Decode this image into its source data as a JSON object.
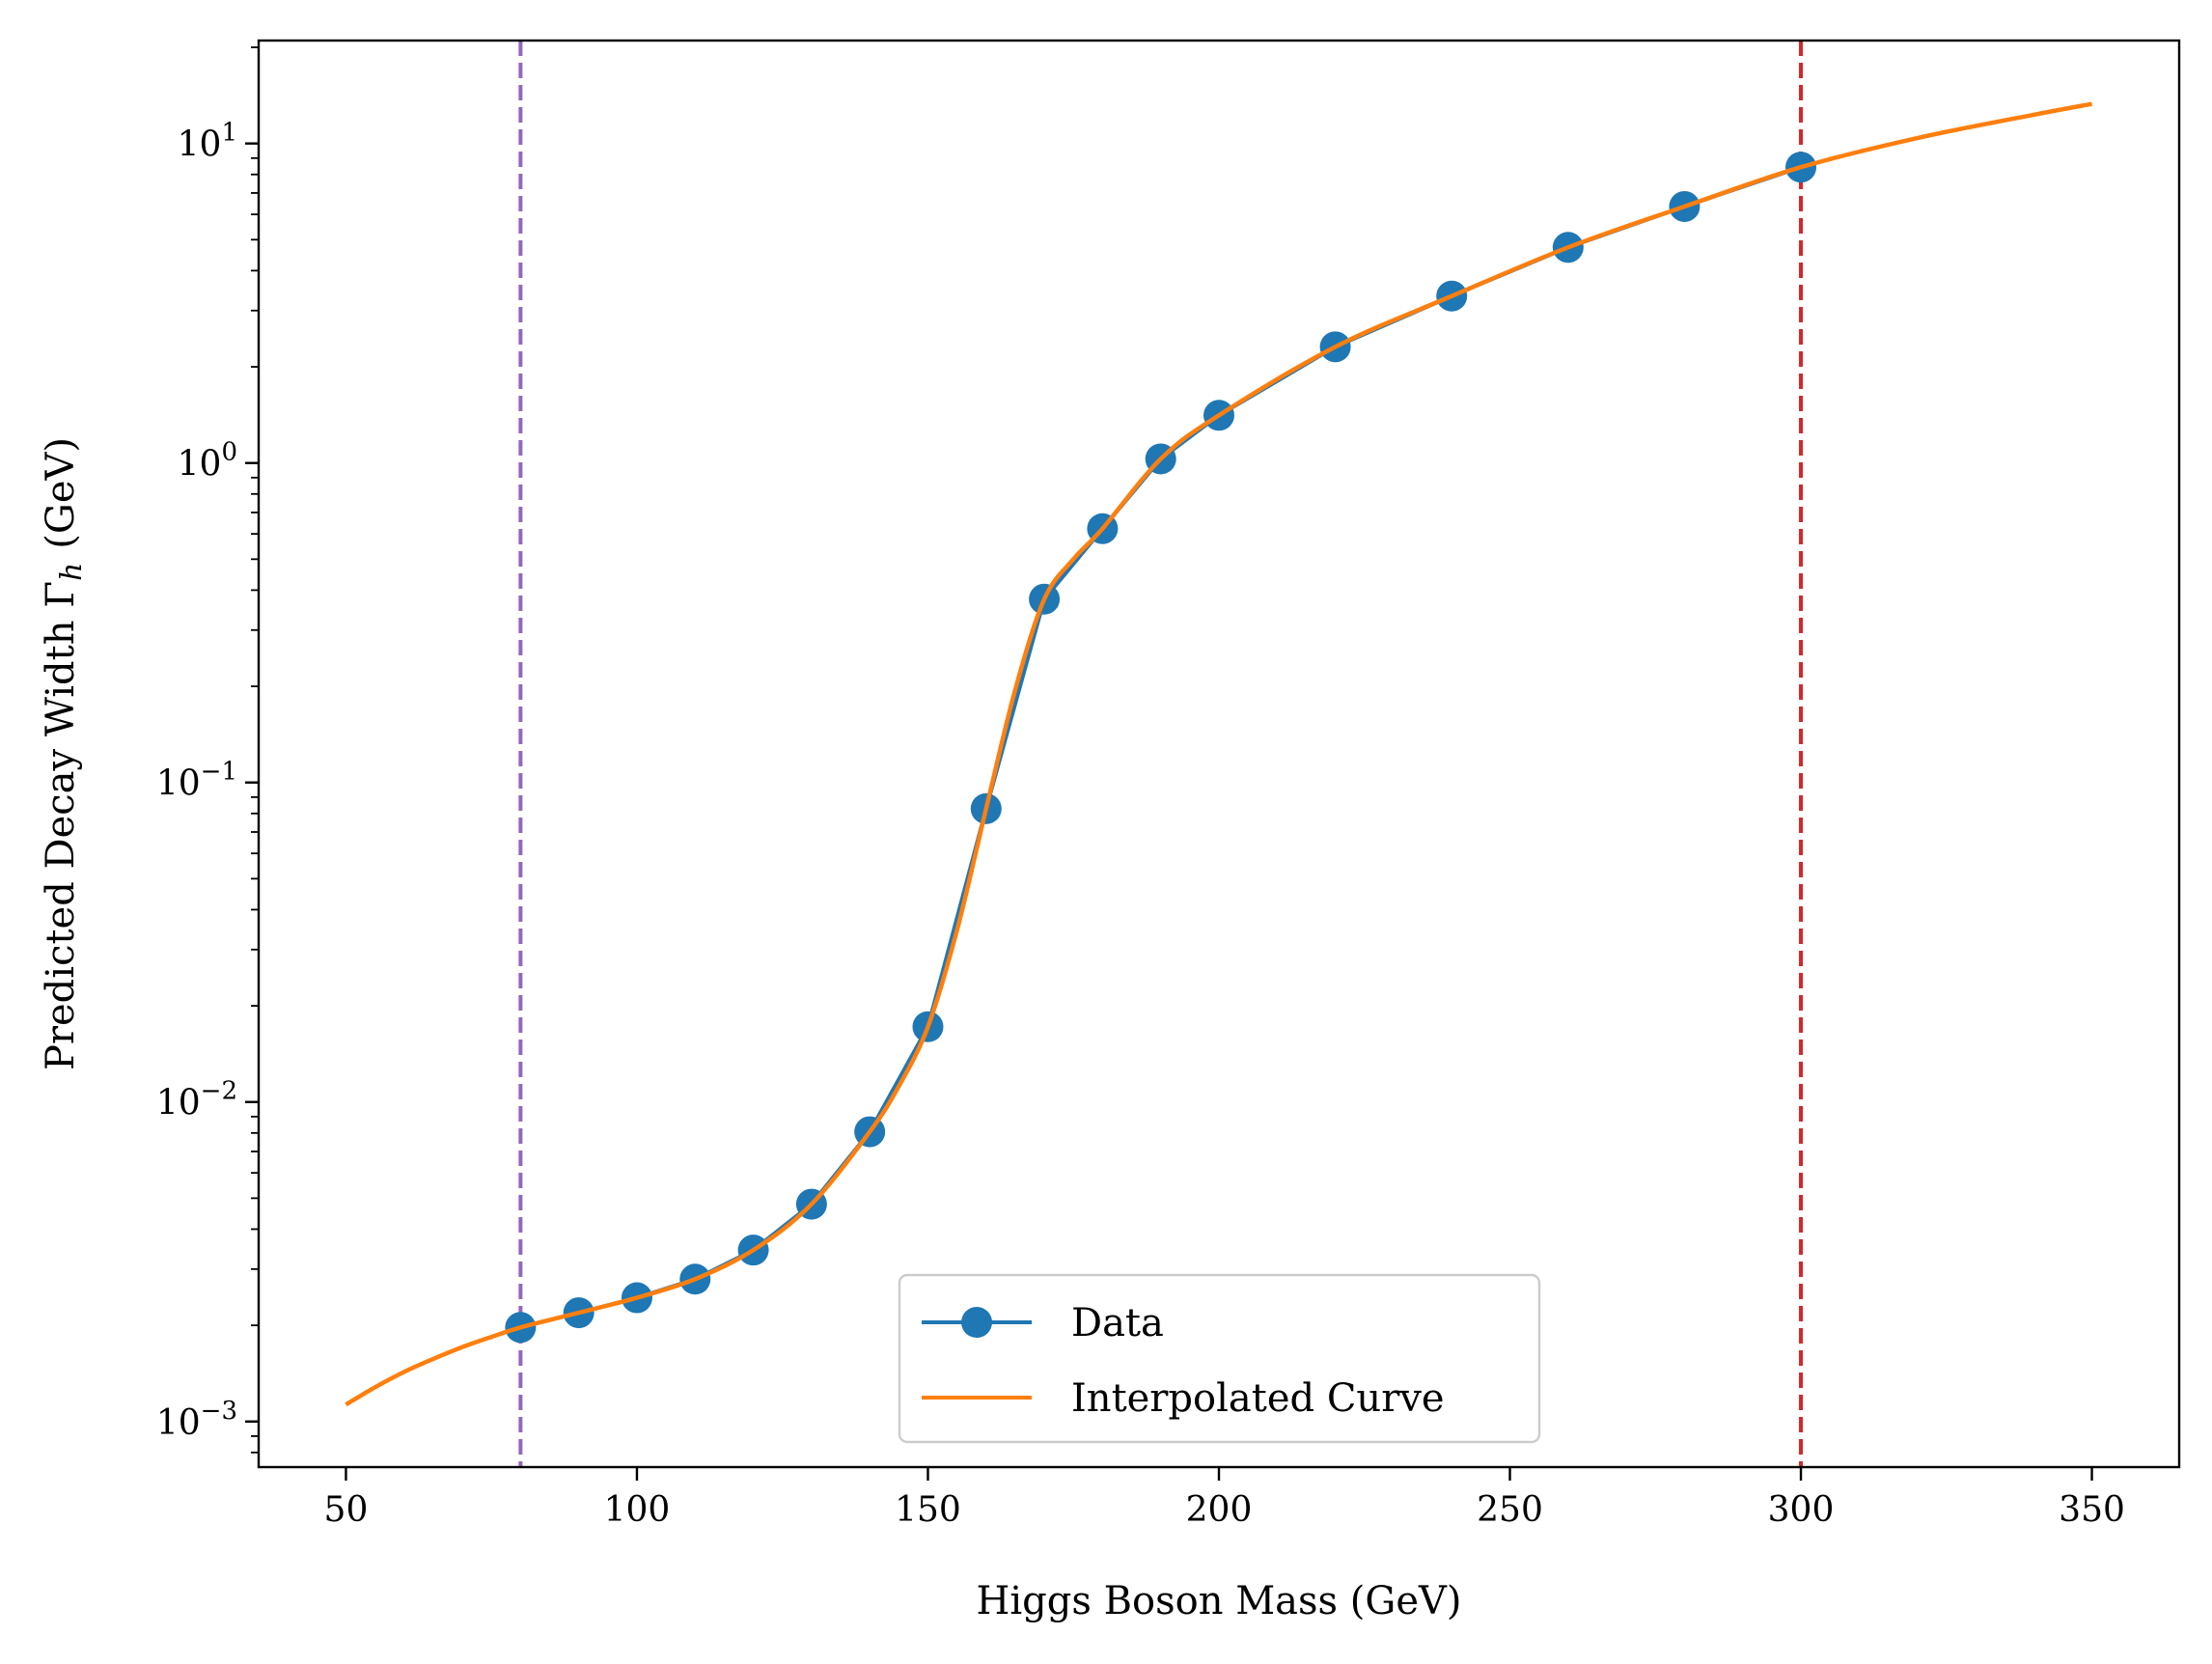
{
  "chart_data": {
    "type": "line",
    "xlabel": "Higgs Boson Mass (GeV)",
    "ylabel": "Predicted Decay Width Γ",
    "ylabel_subscript": "h",
    "ylabel_unit": "(GeV)",
    "x_ticks": [
      50,
      100,
      150,
      200,
      250,
      300,
      350
    ],
    "xlim": [
      35,
      365
    ],
    "yscale": "log",
    "ylim": [
      0.00072,
      21
    ],
    "y_ticks": [
      {
        "value": 0.001,
        "base": "10",
        "exp": "−3"
      },
      {
        "value": 0.01,
        "base": "10",
        "exp": "−2"
      },
      {
        "value": 0.1,
        "base": "10",
        "exp": "−1"
      },
      {
        "value": 1,
        "base": "10",
        "exp": "0"
      },
      {
        "value": 10,
        "base": "10",
        "exp": "1"
      }
    ],
    "grid": false,
    "legend_position": "lower center",
    "series": [
      {
        "name": "Data",
        "color": "#1f77b4",
        "marker": "circle",
        "x": [
          80,
          90,
          100,
          110,
          120,
          130,
          140,
          150,
          160,
          170,
          180,
          190,
          200,
          220,
          240,
          260,
          280,
          300
        ],
        "y": [
          0.00197,
          0.00219,
          0.00244,
          0.00279,
          0.00344,
          0.00479,
          0.00807,
          0.0172,
          0.0828,
          0.375,
          0.623,
          1.03,
          1.41,
          2.31,
          3.33,
          4.73,
          6.35,
          8.43
        ]
      },
      {
        "name": "Interpolated Curve",
        "color": "#ff7f0e",
        "x": [
          50,
          55,
          60,
          65,
          70,
          75,
          80,
          90,
          100,
          110,
          120,
          130,
          140,
          145,
          150,
          155,
          160,
          165,
          170,
          175,
          180,
          190,
          200,
          220,
          240,
          260,
          280,
          300,
          320,
          340,
          350
        ],
        "y": [
          0.00113,
          0.00128,
          0.00143,
          0.00157,
          0.00171,
          0.00184,
          0.00197,
          0.00219,
          0.00244,
          0.00279,
          0.00344,
          0.00479,
          0.00807,
          0.0112,
          0.0172,
          0.0345,
          0.0828,
          0.195,
          0.375,
          0.5,
          0.623,
          1.03,
          1.41,
          2.31,
          3.33,
          4.73,
          6.35,
          8.43,
          10.4,
          12.3,
          13.3
        ]
      }
    ],
    "reference_lines": [
      {
        "x": 80,
        "color": "#9467bd",
        "style": "dashed"
      },
      {
        "x": 300,
        "color": "#d62728",
        "style": "dashed"
      }
    ]
  }
}
